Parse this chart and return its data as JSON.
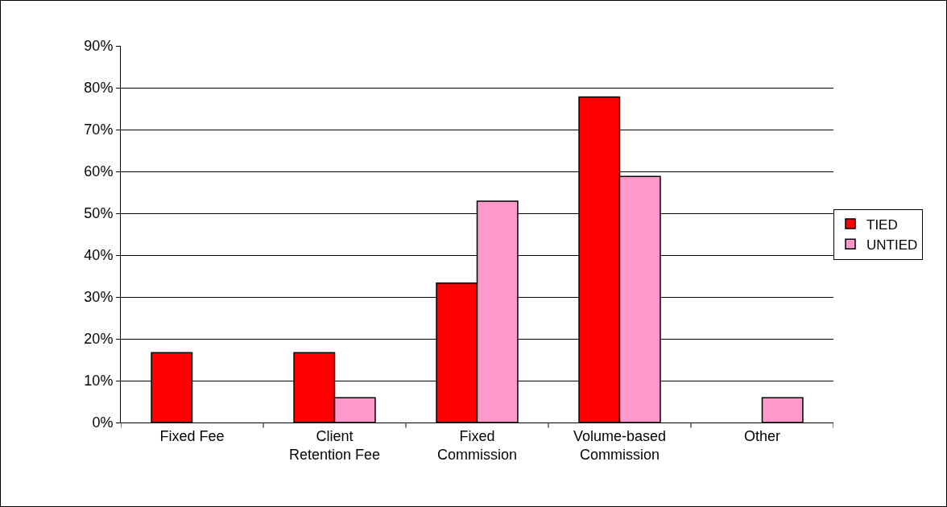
{
  "chart_data": {
    "type": "bar",
    "categories": [
      "Fixed Fee",
      "Client Retention Fee",
      "Fixed Commission",
      "Volume-based Commission",
      "Other"
    ],
    "series": [
      {
        "name": "TIED",
        "color": "#ff0000",
        "values": [
          16.7,
          16.7,
          33.3,
          77.8,
          null
        ]
      },
      {
        "name": "UNTIED",
        "color": "#ff99cc",
        "values": [
          null,
          5.9,
          52.9,
          58.8,
          5.9
        ]
      }
    ],
    "ylim": [
      0,
      90
    ],
    "yticks": [
      {
        "value": 0,
        "label": "0%"
      },
      {
        "value": 10,
        "label": "10%"
      },
      {
        "value": 20,
        "label": "20%"
      },
      {
        "value": 30,
        "label": "30%"
      },
      {
        "value": 40,
        "label": "40%"
      },
      {
        "value": 50,
        "label": "50%"
      },
      {
        "value": 60,
        "label": "60%"
      },
      {
        "value": 70,
        "label": "70%"
      },
      {
        "value": 80,
        "label": "80%"
      },
      {
        "value": 90,
        "label": "90%"
      }
    ],
    "grid": "y",
    "legend": "right"
  }
}
